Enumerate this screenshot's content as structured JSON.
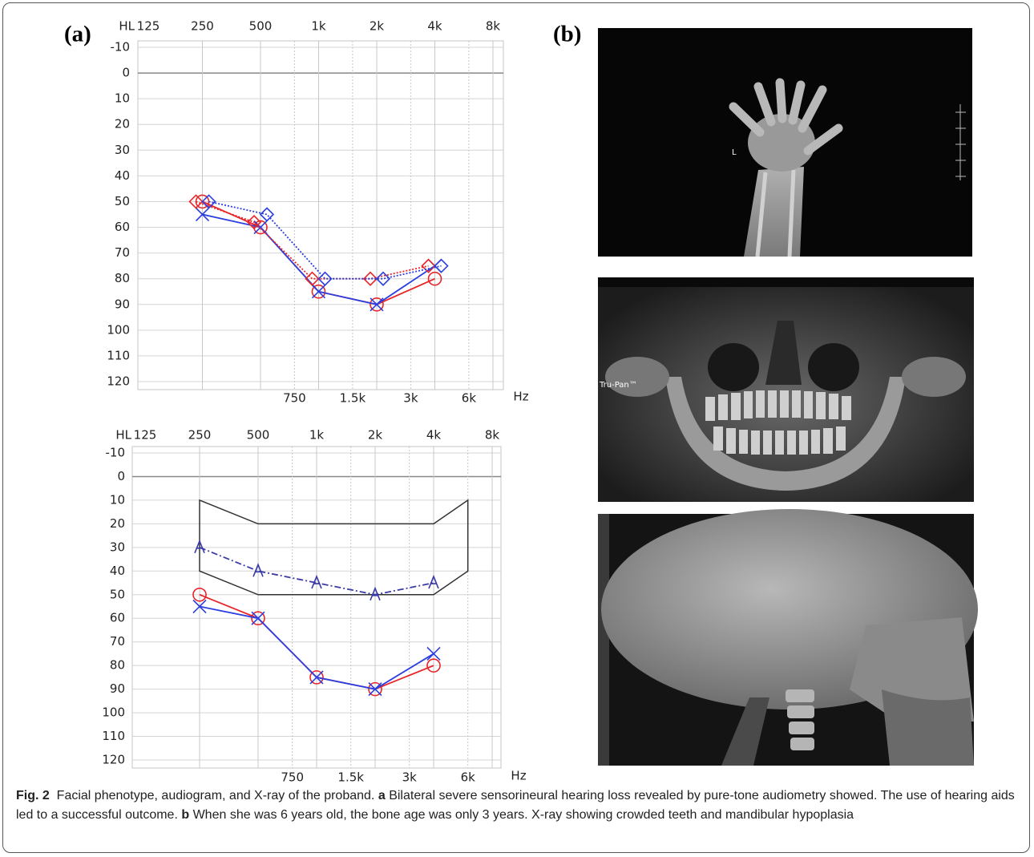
{
  "panel_labels": [
    "(a)",
    "(b)"
  ],
  "chart_data": [
    {
      "type": "audiogram",
      "ylabel": "HL",
      "xlabel": "Hz",
      "log_x": true,
      "y_inverted": true,
      "grid": true,
      "xlim": [
        125,
        8000
      ],
      "xticks": [
        125,
        250,
        500,
        {
          "value": 1000,
          "label": "1k"
        },
        {
          "value": 2000,
          "label": "2k"
        },
        {
          "value": 4000,
          "label": "4k"
        },
        {
          "value": 8000,
          "label": "8k"
        }
      ],
      "xticks_minor": [
        750,
        {
          "value": 1500,
          "label": "1.5k"
        },
        {
          "value": 3000,
          "label": "3k"
        },
        {
          "value": 6000,
          "label": "6k"
        }
      ],
      "ylim": [
        -10,
        120
      ],
      "yticks": [
        -10,
        0,
        10,
        20,
        30,
        40,
        50,
        60,
        70,
        80,
        90,
        100,
        110,
        120
      ],
      "x": [
        250,
        500,
        1000,
        2000,
        4000
      ],
      "series": [
        {
          "color": "#e8262a",
          "marker": "o",
          "dash": "solid",
          "values": [
            50,
            60,
            85,
            90,
            80
          ]
        },
        {
          "color": "#2b3fe0",
          "marker": "x",
          "dash": "solid",
          "values": [
            55,
            60,
            85,
            90,
            75
          ]
        },
        {
          "color": "#e8262a",
          "marker": "<",
          "dash": "dotted",
          "values": [
            50,
            58,
            80,
            80,
            75
          ]
        },
        {
          "color": "#2b3fe0",
          "marker": ">",
          "dash": "dotted",
          "values": [
            50,
            55,
            80,
            80,
            75
          ]
        }
      ]
    },
    {
      "type": "audiogram",
      "ylabel": "HL",
      "xlabel": "Hz",
      "log_x": true,
      "y_inverted": true,
      "grid": true,
      "xlim": [
        125,
        8000
      ],
      "xticks": [
        125,
        250,
        500,
        {
          "value": 1000,
          "label": "1k"
        },
        {
          "value": 2000,
          "label": "2k"
        },
        {
          "value": 4000,
          "label": "4k"
        },
        {
          "value": 8000,
          "label": "8k"
        }
      ],
      "xticks_minor": [
        750,
        {
          "value": 1500,
          "label": "1.5k"
        },
        {
          "value": 3000,
          "label": "3k"
        },
        {
          "value": 6000,
          "label": "6k"
        }
      ],
      "ylim": [
        -10,
        120
      ],
      "yticks": [
        -10,
        0,
        10,
        20,
        30,
        40,
        50,
        60,
        70,
        80,
        90,
        100,
        110,
        120
      ],
      "region": {
        "color": "#333333",
        "x": [
          250,
          500,
          4000,
          6000,
          6000,
          4000,
          500,
          250
        ],
        "values": [
          10,
          20,
          20,
          10,
          40,
          50,
          50,
          40
        ]
      },
      "x": [
        250,
        500,
        1000,
        2000,
        4000
      ],
      "series": [
        {
          "color": "#3a3aa8",
          "marker": "A",
          "dash": "dashdot",
          "values": [
            30,
            40,
            45,
            50,
            45
          ]
        },
        {
          "color": "#e8262a",
          "marker": "o",
          "dash": "solid",
          "values": [
            50,
            60,
            85,
            90,
            80
          ]
        },
        {
          "color": "#2b3fe0",
          "marker": "x",
          "dash": "solid",
          "values": [
            55,
            60,
            85,
            90,
            75
          ]
        }
      ]
    }
  ],
  "xray_texts": [
    "L",
    "Tru-Pan™"
  ],
  "caption": {
    "label": "Fig. 2",
    "title": "Facial phenotype, audiogram, and X-ray of the proband.",
    "a_label": "a",
    "a_text": "Bilateral severe sensorineural hearing loss revealed by pure-tone audiometry showed. The use of hearing aids led to a successful outcome.",
    "b_label": "b",
    "b_text": "When she was 6 years old, the bone age was only 3 years. X-ray showing crowded teeth and mandibular hypoplasia"
  }
}
